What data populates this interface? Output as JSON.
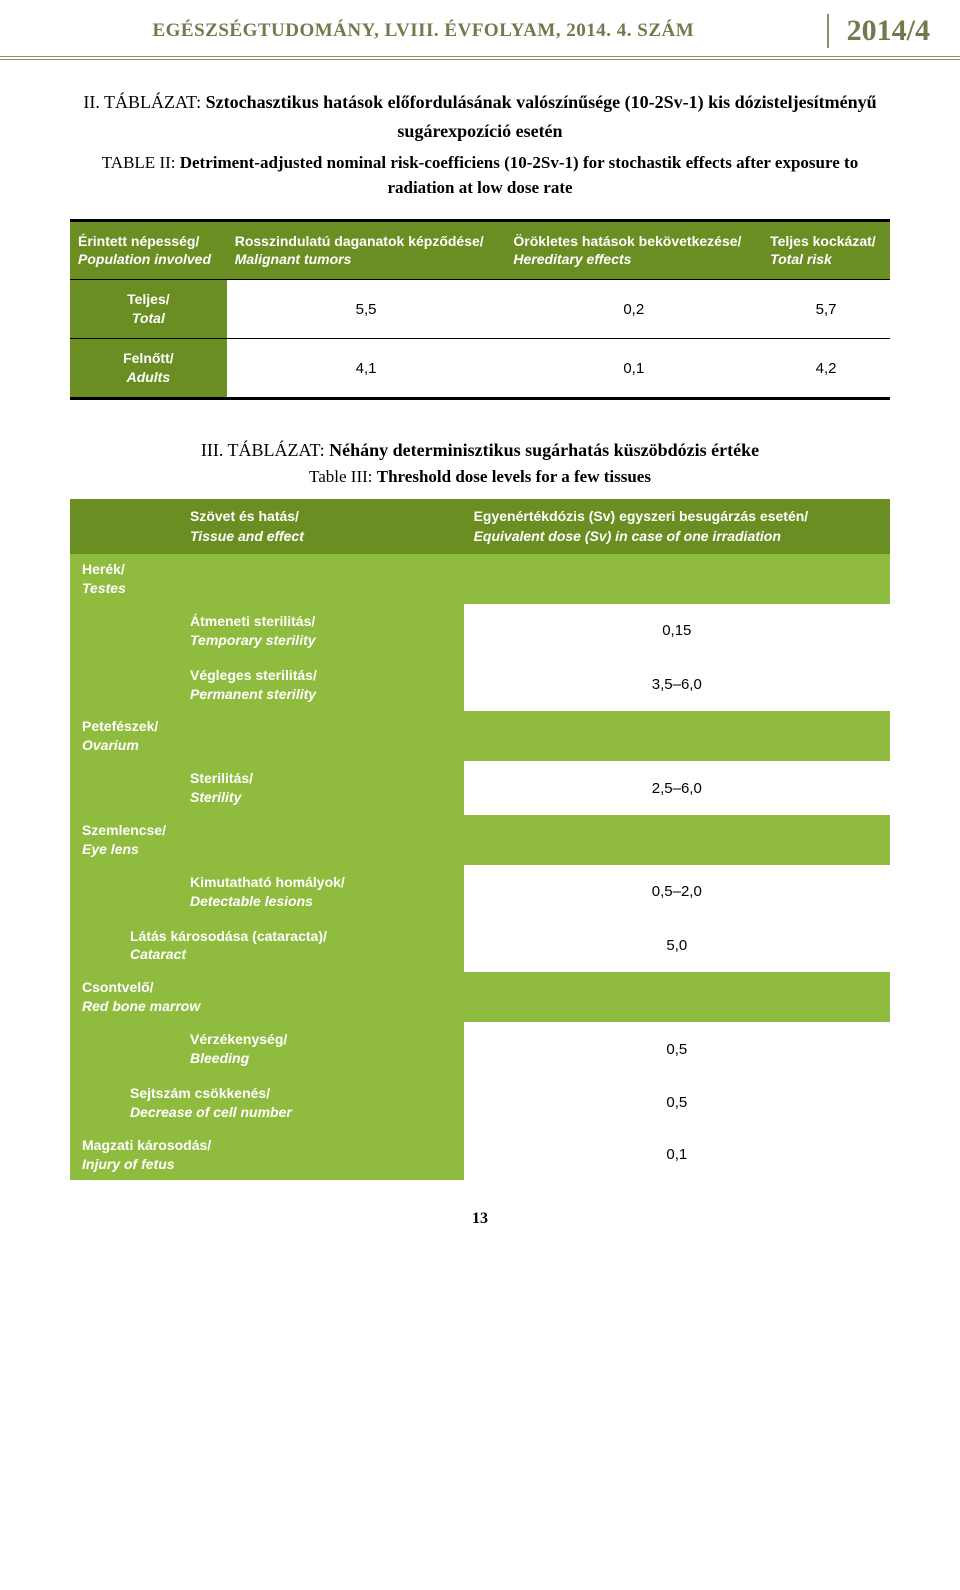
{
  "header": {
    "title": "EGÉSZSÉGTUDOMÁNY, LVIII. ÉVFOLYAM, 2014. 4. SZÁM",
    "year": "2014/4"
  },
  "table2": {
    "caption_hu_prefix": "II. TÁBLÁZAT: ",
    "caption_hu": "Sztochasztikus hatások előfordulásának valószínűsége (10-2Sv-1) kis dózisteljesítményű sugárexpozíció esetén",
    "caption_en_prefix": "TABLE II: ",
    "caption_en": "Detriment-adjusted nominal risk-coefficiens (10-2Sv-1) for stochastik effects after exposure to radiation at low dose rate",
    "headers": {
      "pop_hu": "Érintett népesség/",
      "pop_en": "Population involved",
      "mal_hu": "Rosszindulatú daganatok képződése/",
      "mal_en": "Malignant tumors",
      "her_hu": "Örökletes hatások bekövetkezése/",
      "her_en": "Hereditary effects",
      "tot_hu": "Teljes kockázat/",
      "tot_en": "Total risk"
    },
    "rows": [
      {
        "label_hu": "Teljes/",
        "label_en": "Total",
        "v1": "5,5",
        "v2": "0,2",
        "v3": "5,7"
      },
      {
        "label_hu": "Felnőtt/",
        "label_en": "Adults",
        "v1": "4,1",
        "v2": "0,1",
        "v3": "4,2"
      }
    ]
  },
  "table3": {
    "caption_hu_prefix": "III. TÁBLÁZAT: ",
    "caption_hu": "Néhány determinisztikus sugárhatás küszöbdózis értéke",
    "caption_en_prefix": "Table III: ",
    "caption_en": "Threshold dose levels for a few tissues",
    "headers": {
      "tissue_hu": "Szövet és hatás/",
      "tissue_en": "Tissue and effect",
      "dose_hu": "Egyenértékdózis (Sv) egyszeri besugárzás esetén/",
      "dose_en": "Equivalent dose (Sv) in case of one irradiation"
    },
    "rows": [
      {
        "type": "section",
        "hu": "Herék/",
        "en": "Testes"
      },
      {
        "type": "effect",
        "pad": "normal",
        "hu": "Átmeneti sterilitás/",
        "en": "Temporary sterility",
        "dose": "0,15"
      },
      {
        "type": "effect",
        "pad": "normal",
        "hu": "Végleges sterilitás/",
        "en": "Permanent sterility",
        "dose": "3,5–6,0"
      },
      {
        "type": "section",
        "hu": "Petefészek/",
        "en": "Ovarium"
      },
      {
        "type": "effect",
        "pad": "normal",
        "hu": "Sterilitás/",
        "en": "Sterility",
        "dose": "2,5–6,0"
      },
      {
        "type": "section",
        "hu": "Szemlencse/",
        "en": "Eye lens"
      },
      {
        "type": "effect",
        "pad": "normal",
        "hu": "Kimutatható homályok/",
        "en": "Detectable lesions",
        "dose": "0,5–2,0"
      },
      {
        "type": "effect",
        "pad": "left",
        "hu": "Látás károsodása (cataracta)/",
        "en": "Cataract",
        "dose": "5,0"
      },
      {
        "type": "section",
        "hu": "Csontvelő/",
        "en": "Red bone marrow"
      },
      {
        "type": "effect",
        "pad": "normal",
        "hu": "Vérzékenység/",
        "en": "Bleeding",
        "dose": "0,5"
      },
      {
        "type": "effect",
        "pad": "left",
        "hu": "Sejtszám csökkenés/",
        "en": "Decrease of cell number",
        "dose": "0,5"
      },
      {
        "type": "section-dose",
        "hu": "Magzati károsodás/",
        "en": "Injury of fetus",
        "dose": "0,1"
      }
    ]
  },
  "footer": {
    "page": "13"
  },
  "colors": {
    "olive_header": "#6b8e23",
    "light_olive": "#8fbc3f",
    "title_text": "#72794c",
    "rule": "#8b9163"
  }
}
